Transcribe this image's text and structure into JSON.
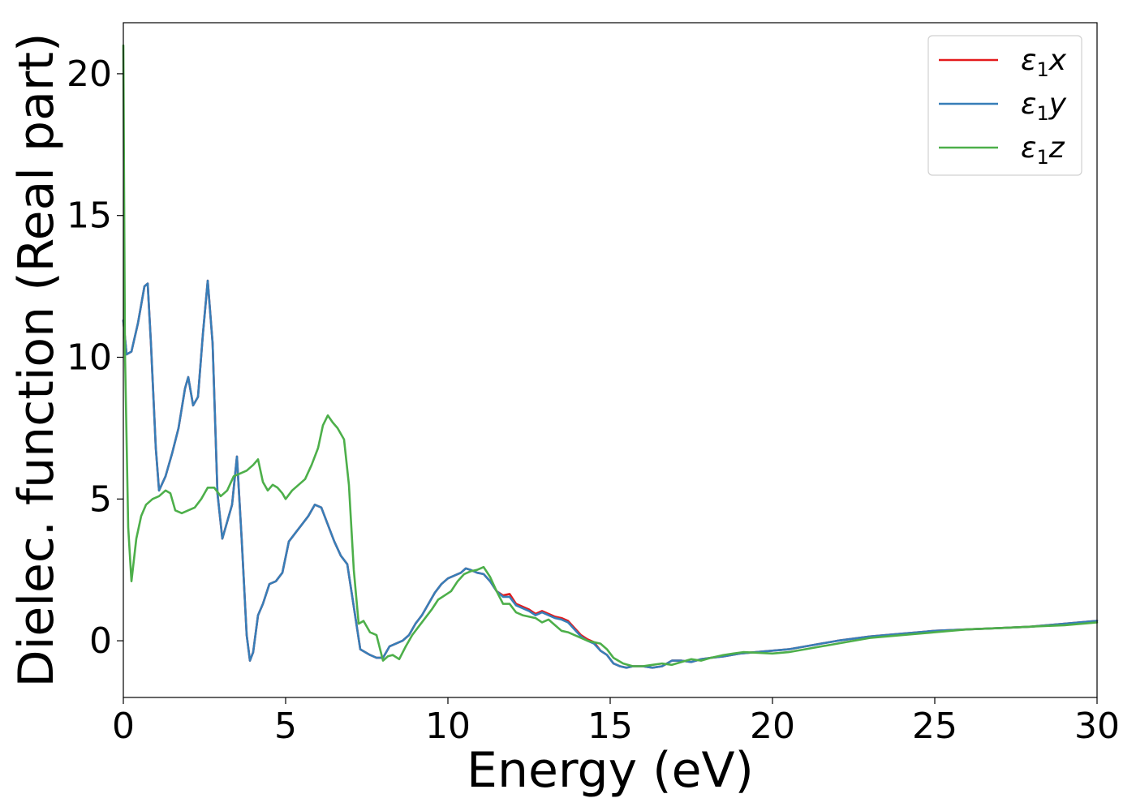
{
  "chart_data": {
    "type": "line",
    "xlabel": "Energy (eV)",
    "ylabel": "Dielec. function (Real part)",
    "xlim": [
      0,
      30
    ],
    "ylim": [
      -2,
      21.8
    ],
    "xticks": [
      0,
      5,
      10,
      15,
      20,
      25,
      30
    ],
    "xtick_labels": [
      "0",
      "5",
      "10",
      "15",
      "20",
      "25",
      "30"
    ],
    "yticks": [
      0,
      5,
      10,
      15,
      20
    ],
    "ytick_labels": [
      "0",
      "5",
      "10",
      "15",
      "20"
    ],
    "grid": false,
    "legend_position": "top-right",
    "series": [
      {
        "name": "ε1x",
        "legend_base": "ε",
        "legend_sub": "1",
        "legend_var": "x",
        "color": "#e41a1c",
        "x": [
          0,
          0.1,
          0.25,
          0.45,
          0.65,
          0.75,
          0.85,
          1.0,
          1.1,
          1.3,
          1.5,
          1.7,
          1.9,
          2.0,
          2.15,
          2.3,
          2.45,
          2.6,
          2.75,
          2.9,
          3.05,
          3.2,
          3.35,
          3.5,
          3.65,
          3.8,
          3.9,
          4.0,
          4.15,
          4.3,
          4.5,
          4.7,
          4.9,
          5.1,
          5.3,
          5.5,
          5.7,
          5.9,
          6.1,
          6.3,
          6.5,
          6.7,
          6.9,
          7.1,
          7.3,
          7.45,
          7.6,
          7.8,
          8.0,
          8.2,
          8.4,
          8.6,
          8.8,
          9.0,
          9.2,
          9.4,
          9.6,
          9.8,
          10.0,
          10.2,
          10.4,
          10.55,
          10.7,
          10.9,
          11.1,
          11.3,
          11.5,
          11.7,
          11.9,
          12.1,
          12.3,
          12.5,
          12.7,
          12.9,
          13.1,
          13.3,
          13.5,
          13.7,
          13.9,
          14.1,
          14.3,
          14.5,
          14.7,
          14.9,
          15.1,
          15.3,
          15.5,
          15.7,
          16.0,
          16.3,
          16.6,
          16.9,
          17.2,
          17.5,
          17.8,
          18.1,
          18.5,
          19.0,
          19.5,
          20.0,
          20.5,
          21.0,
          22.0,
          23.0,
          24.0,
          25.0,
          26.0,
          27.0,
          28.0,
          29.0,
          30.0
        ],
        "values": [
          11.3,
          10.1,
          10.2,
          11.2,
          12.5,
          12.6,
          10.5,
          6.8,
          5.3,
          5.8,
          6.6,
          7.5,
          8.9,
          9.3,
          8.3,
          8.6,
          10.8,
          12.7,
          10.5,
          5.2,
          3.6,
          4.2,
          4.8,
          6.5,
          3.5,
          0.2,
          -0.7,
          -0.4,
          0.9,
          1.3,
          2.0,
          2.1,
          2.4,
          3.5,
          3.8,
          4.1,
          4.4,
          4.8,
          4.7,
          4.1,
          3.5,
          3.0,
          2.7,
          1.2,
          -0.3,
          -0.4,
          -0.5,
          -0.6,
          -0.6,
          -0.2,
          -0.1,
          0.0,
          0.2,
          0.6,
          0.9,
          1.3,
          1.7,
          2.0,
          2.2,
          2.3,
          2.4,
          2.55,
          2.5,
          2.4,
          2.35,
          2.1,
          1.75,
          1.6,
          1.65,
          1.3,
          1.2,
          1.1,
          0.95,
          1.05,
          0.95,
          0.85,
          0.8,
          0.7,
          0.45,
          0.2,
          0.05,
          -0.05,
          -0.35,
          -0.5,
          -0.8,
          -0.9,
          -0.95,
          -0.9,
          -0.9,
          -0.95,
          -0.9,
          -0.7,
          -0.7,
          -0.75,
          -0.65,
          -0.6,
          -0.55,
          -0.45,
          -0.4,
          -0.35,
          -0.3,
          -0.2,
          0.0,
          0.15,
          0.25,
          0.35,
          0.4,
          0.45,
          0.5,
          0.6,
          0.7
        ]
      },
      {
        "name": "ε1y",
        "legend_base": "ε",
        "legend_sub": "1",
        "legend_var": "y",
        "color": "#377eb8",
        "x": [
          0,
          0.1,
          0.25,
          0.45,
          0.65,
          0.75,
          0.85,
          1.0,
          1.1,
          1.3,
          1.5,
          1.7,
          1.9,
          2.0,
          2.15,
          2.3,
          2.45,
          2.6,
          2.75,
          2.9,
          3.05,
          3.2,
          3.35,
          3.5,
          3.65,
          3.8,
          3.9,
          4.0,
          4.15,
          4.3,
          4.5,
          4.7,
          4.9,
          5.1,
          5.3,
          5.5,
          5.7,
          5.9,
          6.1,
          6.3,
          6.5,
          6.7,
          6.9,
          7.1,
          7.3,
          7.45,
          7.6,
          7.8,
          8.0,
          8.2,
          8.4,
          8.6,
          8.8,
          9.0,
          9.2,
          9.4,
          9.6,
          9.8,
          10.0,
          10.2,
          10.4,
          10.55,
          10.7,
          10.9,
          11.1,
          11.3,
          11.5,
          11.7,
          11.9,
          12.1,
          12.3,
          12.5,
          12.7,
          12.9,
          13.1,
          13.3,
          13.5,
          13.7,
          13.9,
          14.1,
          14.3,
          14.5,
          14.7,
          14.9,
          15.1,
          15.3,
          15.5,
          15.7,
          16.0,
          16.3,
          16.6,
          16.9,
          17.2,
          17.5,
          17.8,
          18.1,
          18.5,
          19.0,
          19.5,
          20.0,
          20.5,
          21.0,
          22.0,
          23.0,
          24.0,
          25.0,
          26.0,
          27.0,
          28.0,
          29.0,
          30.0
        ],
        "values": [
          11.3,
          10.1,
          10.2,
          11.2,
          12.5,
          12.6,
          10.5,
          6.8,
          5.3,
          5.8,
          6.6,
          7.5,
          8.9,
          9.3,
          8.3,
          8.6,
          10.8,
          12.7,
          10.5,
          5.2,
          3.6,
          4.2,
          4.8,
          6.5,
          3.5,
          0.2,
          -0.7,
          -0.4,
          0.9,
          1.3,
          2.0,
          2.1,
          2.4,
          3.5,
          3.8,
          4.1,
          4.4,
          4.8,
          4.7,
          4.1,
          3.5,
          3.0,
          2.7,
          1.2,
          -0.3,
          -0.4,
          -0.5,
          -0.6,
          -0.6,
          -0.2,
          -0.1,
          0.0,
          0.2,
          0.6,
          0.9,
          1.3,
          1.7,
          2.0,
          2.2,
          2.3,
          2.4,
          2.55,
          2.5,
          2.4,
          2.35,
          2.1,
          1.75,
          1.55,
          1.55,
          1.25,
          1.15,
          1.05,
          0.9,
          1.0,
          0.9,
          0.8,
          0.75,
          0.65,
          0.4,
          0.15,
          0.0,
          -0.1,
          -0.35,
          -0.5,
          -0.8,
          -0.9,
          -0.95,
          -0.9,
          -0.9,
          -0.95,
          -0.9,
          -0.7,
          -0.7,
          -0.75,
          -0.65,
          -0.6,
          -0.55,
          -0.45,
          -0.4,
          -0.35,
          -0.3,
          -0.2,
          0.0,
          0.15,
          0.25,
          0.35,
          0.4,
          0.45,
          0.5,
          0.6,
          0.7
        ]
      },
      {
        "name": "ε1z",
        "legend_base": "ε",
        "legend_sub": "1",
        "legend_var": "z",
        "color": "#4daf4a",
        "x": [
          0,
          0.05,
          0.15,
          0.25,
          0.4,
          0.55,
          0.7,
          0.9,
          1.1,
          1.3,
          1.45,
          1.6,
          1.8,
          2.0,
          2.2,
          2.4,
          2.6,
          2.8,
          3.0,
          3.2,
          3.4,
          3.6,
          3.8,
          4.0,
          4.15,
          4.3,
          4.45,
          4.6,
          4.75,
          4.9,
          5.0,
          5.2,
          5.4,
          5.6,
          5.8,
          6.0,
          6.15,
          6.3,
          6.45,
          6.6,
          6.8,
          6.95,
          7.1,
          7.25,
          7.4,
          7.6,
          7.8,
          8.0,
          8.15,
          8.3,
          8.5,
          8.7,
          8.9,
          9.1,
          9.3,
          9.5,
          9.7,
          9.9,
          10.1,
          10.3,
          10.5,
          10.7,
          10.9,
          11.1,
          11.3,
          11.5,
          11.7,
          11.9,
          12.1,
          12.3,
          12.5,
          12.7,
          12.9,
          13.1,
          13.3,
          13.5,
          13.7,
          13.9,
          14.1,
          14.3,
          14.5,
          14.7,
          14.9,
          15.1,
          15.4,
          15.7,
          16.0,
          16.3,
          16.6,
          16.9,
          17.2,
          17.5,
          17.8,
          18.1,
          18.5,
          18.8,
          19.1,
          19.5,
          20.0,
          20.5,
          21.0,
          22.0,
          23.0,
          24.0,
          25.0,
          26.0,
          27.0,
          28.0,
          29.0,
          30.0
        ],
        "values": [
          21.0,
          10.2,
          4.0,
          2.1,
          3.6,
          4.4,
          4.8,
          5.0,
          5.1,
          5.3,
          5.2,
          4.6,
          4.5,
          4.6,
          4.7,
          5.0,
          5.4,
          5.4,
          5.1,
          5.3,
          5.8,
          5.9,
          6.0,
          6.2,
          6.4,
          5.6,
          5.3,
          5.5,
          5.4,
          5.2,
          5.0,
          5.3,
          5.5,
          5.7,
          6.2,
          6.8,
          7.6,
          7.95,
          7.7,
          7.5,
          7.1,
          5.5,
          2.5,
          0.6,
          0.7,
          0.3,
          0.2,
          -0.7,
          -0.55,
          -0.5,
          -0.65,
          -0.2,
          0.2,
          0.5,
          0.8,
          1.1,
          1.45,
          1.6,
          1.75,
          2.1,
          2.35,
          2.45,
          2.5,
          2.6,
          2.25,
          1.75,
          1.3,
          1.3,
          1.0,
          0.9,
          0.85,
          0.8,
          0.65,
          0.75,
          0.55,
          0.35,
          0.3,
          0.2,
          0.1,
          0.0,
          -0.05,
          -0.1,
          -0.3,
          -0.6,
          -0.8,
          -0.9,
          -0.9,
          -0.85,
          -0.8,
          -0.85,
          -0.75,
          -0.65,
          -0.7,
          -0.6,
          -0.5,
          -0.45,
          -0.4,
          -0.42,
          -0.45,
          -0.4,
          -0.3,
          -0.1,
          0.1,
          0.2,
          0.3,
          0.4,
          0.45,
          0.5,
          0.55,
          0.65
        ]
      }
    ]
  }
}
